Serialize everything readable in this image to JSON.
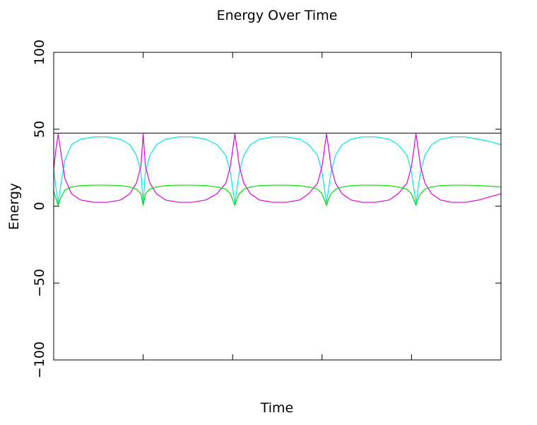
{
  "chart_data": {
    "type": "line",
    "title": "Energy Over Time",
    "xlabel": "Time",
    "ylabel": "Energy",
    "xlim": [
      0,
      1
    ],
    "ylim": [
      -100,
      100
    ],
    "y_ticks": [
      -100,
      -50,
      0,
      50,
      100
    ],
    "x_ticks_unlabeled": [
      0.2,
      0.4,
      0.6,
      0.8
    ],
    "grid": false,
    "legend": "none",
    "reference_line": {
      "y": 47.5,
      "color": "#000000"
    },
    "series": [
      {
        "color": "#00e5e5",
        "x": [
          0,
          0.005,
          0.01,
          0.015,
          0.025,
          0.04,
          0.06,
          0.09,
          0.12,
          0.15,
          0.17,
          0.185,
          0.195,
          0.2,
          0.205,
          0.215,
          0.23,
          0.25,
          0.28,
          0.31,
          0.34,
          0.365,
          0.385,
          0.395,
          0.405,
          0.41,
          0.415,
          0.425,
          0.44,
          0.46,
          0.49,
          0.52,
          0.55,
          0.57,
          0.59,
          0.6,
          0.61,
          0.615,
          0.62,
          0.63,
          0.645,
          0.665,
          0.69,
          0.72,
          0.75,
          0.77,
          0.79,
          0.8,
          0.81,
          0.815,
          0.82,
          0.83,
          0.845,
          0.865,
          0.89,
          0.92,
          0.95,
          0.975,
          1.0
        ],
        "y": [
          24,
          12,
          2,
          12,
          30,
          40,
          43.5,
          45,
          45,
          43.5,
          40,
          33,
          22,
          2,
          22,
          33,
          40,
          43.5,
          45,
          45,
          43.5,
          40,
          33,
          22,
          2,
          12,
          22,
          33,
          40,
          43.5,
          45,
          45,
          43.5,
          40,
          33,
          22,
          2,
          12,
          22,
          33,
          40,
          43.5,
          45,
          45,
          43.5,
          40,
          33,
          22,
          2,
          12,
          22,
          33,
          40,
          43.5,
          45,
          45,
          43.5,
          42,
          40
        ]
      },
      {
        "color": "#e000e0",
        "x": [
          0,
          0.005,
          0.01,
          0.015,
          0.025,
          0.04,
          0.06,
          0.09,
          0.12,
          0.15,
          0.17,
          0.185,
          0.195,
          0.2,
          0.205,
          0.215,
          0.23,
          0.25,
          0.28,
          0.31,
          0.34,
          0.365,
          0.385,
          0.395,
          0.405,
          0.41,
          0.415,
          0.425,
          0.44,
          0.46,
          0.49,
          0.52,
          0.55,
          0.57,
          0.59,
          0.6,
          0.61,
          0.615,
          0.62,
          0.63,
          0.645,
          0.665,
          0.69,
          0.72,
          0.75,
          0.77,
          0.79,
          0.8,
          0.81,
          0.815,
          0.82,
          0.83,
          0.845,
          0.865,
          0.89,
          0.92,
          0.95,
          0.975,
          1.0
        ],
        "y": [
          24,
          37,
          47,
          37,
          18,
          8,
          4,
          2.5,
          2.5,
          4,
          8,
          15,
          26,
          47,
          26,
          15,
          8,
          4,
          2.5,
          2.5,
          4,
          8,
          15,
          26,
          47,
          37,
          26,
          15,
          8,
          4,
          2.5,
          2.5,
          4,
          8,
          15,
          26,
          47,
          37,
          26,
          15,
          8,
          4,
          2.5,
          2.5,
          4,
          8,
          15,
          26,
          47,
          37,
          26,
          15,
          8,
          4,
          2.5,
          2.5,
          4,
          6,
          8
        ]
      },
      {
        "color": "#00dd00",
        "x": [
          0,
          0.005,
          0.01,
          0.015,
          0.025,
          0.04,
          0.06,
          0.09,
          0.12,
          0.15,
          0.17,
          0.185,
          0.195,
          0.2,
          0.205,
          0.215,
          0.23,
          0.25,
          0.28,
          0.31,
          0.34,
          0.365,
          0.385,
          0.395,
          0.405,
          0.41,
          0.415,
          0.425,
          0.44,
          0.46,
          0.49,
          0.52,
          0.55,
          0.57,
          0.59,
          0.6,
          0.61,
          0.615,
          0.62,
          0.63,
          0.645,
          0.665,
          0.69,
          0.72,
          0.75,
          0.77,
          0.79,
          0.8,
          0.81,
          0.815,
          0.82,
          0.83,
          0.845,
          0.865,
          0.89,
          0.92,
          0.95,
          0.975,
          1.0
        ],
        "y": [
          10,
          5,
          0.5,
          5,
          10.5,
          12.5,
          13.3,
          13.6,
          13.6,
          13.3,
          12.5,
          11,
          8,
          0.5,
          8,
          11,
          12.5,
          13.3,
          13.6,
          13.6,
          13.3,
          12.5,
          11,
          8,
          0.5,
          5,
          8,
          11,
          12.5,
          13.3,
          13.6,
          13.6,
          13.3,
          12.5,
          11,
          8,
          0.5,
          5,
          8,
          11,
          12.5,
          13.3,
          13.6,
          13.6,
          13.3,
          12.5,
          11,
          8,
          0.5,
          5,
          8,
          11,
          12.5,
          13.3,
          13.6,
          13.6,
          13.3,
          13,
          12.5
        ]
      }
    ]
  }
}
